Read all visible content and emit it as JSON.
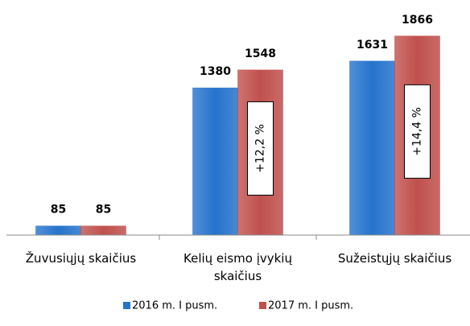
{
  "chart_data": {
    "type": "bar",
    "categories": [
      "Žuvusiųjų skaičius",
      "Kelių eismo įvykių skaičius",
      "Sužeistųjų skaičius"
    ],
    "series": [
      {
        "name": "2016 m. I pusm.",
        "color": "#2673cc",
        "values": [
          85,
          1380,
          1631
        ]
      },
      {
        "name": "2017 m. I pusm.",
        "color": "#c0504d",
        "values": [
          85,
          1548,
          1866
        ]
      }
    ],
    "ylim": [
      0,
      2000
    ],
    "annotations": [
      {
        "text": "+12,2 %",
        "category": 1
      },
      {
        "text": "+14,4 %",
        "category": 2
      }
    ]
  }
}
